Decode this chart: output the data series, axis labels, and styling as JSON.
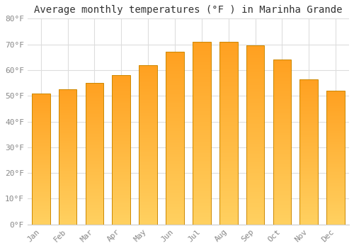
{
  "title": "Average monthly temperatures (°F ) in Marinha Grande",
  "months": [
    "Jan",
    "Feb",
    "Mar",
    "Apr",
    "May",
    "Jun",
    "Jul",
    "Aug",
    "Sep",
    "Oct",
    "Nov",
    "Dec"
  ],
  "values": [
    51,
    52.5,
    55,
    58,
    62,
    67,
    71,
    71,
    69.5,
    64,
    56.5,
    52
  ],
  "ylim": [
    0,
    80
  ],
  "yticks": [
    0,
    10,
    20,
    30,
    40,
    50,
    60,
    70,
    80
  ],
  "ytick_labels": [
    "0°F",
    "10°F",
    "20°F",
    "30°F",
    "40°F",
    "50°F",
    "60°F",
    "70°F",
    "80°F"
  ],
  "background_color": "#ffffff",
  "plot_bg_color": "#ffffff",
  "grid_color": "#dddddd",
  "bar_color_bottom": "#FFD060",
  "bar_color_top": "#FFA020",
  "bar_edge_color": "#CC8800",
  "title_fontsize": 10,
  "tick_fontsize": 8,
  "font_family": "monospace",
  "tick_color": "#888888",
  "title_color": "#333333"
}
